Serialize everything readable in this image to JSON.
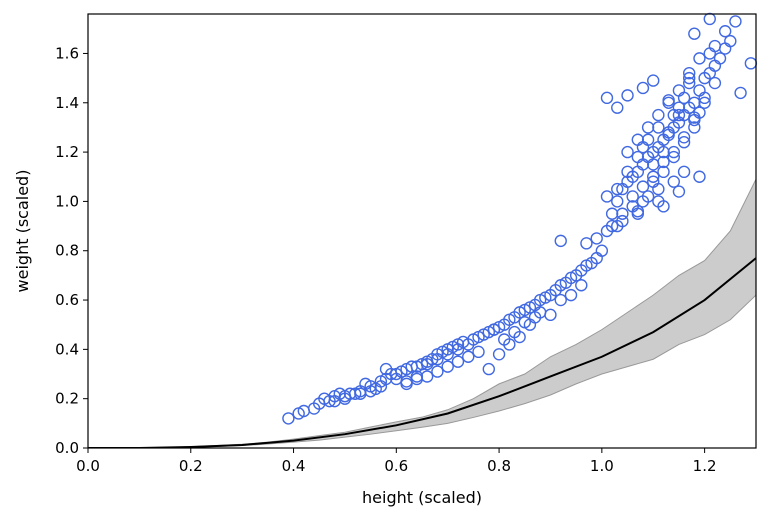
{
  "chart_data": {
    "type": "scatter",
    "title": "",
    "xlabel": "height (scaled)",
    "ylabel": "weight (scaled)",
    "xlim": [
      0,
      1.3
    ],
    "ylim": [
      0,
      1.76
    ],
    "grid": false,
    "legend": "none",
    "xticks": [
      {
        "value": 0.0,
        "label": "0.0"
      },
      {
        "value": 0.2,
        "label": "0.2"
      },
      {
        "value": 0.4,
        "label": "0.4"
      },
      {
        "value": 0.6,
        "label": "0.6"
      },
      {
        "value": 0.8,
        "label": "0.8"
      },
      {
        "value": 1.0,
        "label": "1.0"
      },
      {
        "value": 1.2,
        "label": "1.2"
      }
    ],
    "yticks": [
      {
        "value": 0.0,
        "label": "0.0"
      },
      {
        "value": 0.2,
        "label": "0.2"
      },
      {
        "value": 0.4,
        "label": "0.4"
      },
      {
        "value": 0.6,
        "label": "0.6"
      },
      {
        "value": 0.8,
        "label": "0.8"
      },
      {
        "value": 1.0,
        "label": "1.0"
      },
      {
        "value": 1.2,
        "label": "1.2"
      },
      {
        "value": 1.4,
        "label": "1.4"
      },
      {
        "value": 1.6,
        "label": "1.6"
      }
    ],
    "colors": {
      "points": "#4169e1",
      "line": "#000000",
      "band": "#cccccc",
      "band_edge": "#999999"
    },
    "scatter": {
      "x": [
        0.39,
        0.41,
        0.42,
        0.44,
        0.45,
        0.46,
        0.47,
        0.48,
        0.49,
        0.5,
        0.51,
        0.52,
        0.53,
        0.54,
        0.55,
        0.56,
        0.57,
        0.58,
        0.59,
        0.6,
        0.61,
        0.62,
        0.63,
        0.64,
        0.65,
        0.66,
        0.67,
        0.68,
        0.69,
        0.7,
        0.71,
        0.72,
        0.73,
        0.74,
        0.75,
        0.76,
        0.77,
        0.78,
        0.79,
        0.8,
        0.81,
        0.82,
        0.83,
        0.84,
        0.85,
        0.86,
        0.87,
        0.88,
        0.89,
        0.9,
        0.91,
        0.92,
        0.93,
        0.94,
        0.95,
        0.96,
        0.97,
        0.98,
        0.99,
        1.0,
        1.01,
        1.02,
        1.03,
        1.04,
        1.05,
        1.06,
        1.07,
        1.08,
        1.09,
        1.1,
        1.11,
        1.12,
        1.13,
        1.14,
        1.15,
        1.16,
        1.17,
        1.18,
        1.19,
        1.2,
        1.21,
        1.22,
        1.23,
        1.24,
        1.25,
        1.27,
        1.29,
        1.01,
        1.03,
        1.05,
        1.07,
        1.08,
        1.09,
        1.1,
        1.11,
        1.12,
        1.13,
        1.14,
        1.15,
        1.16,
        1.17,
        1.18,
        1.19,
        1.2,
        1.04,
        1.06,
        1.08,
        1.1,
        1.12,
        1.14,
        1.16,
        1.18,
        1.02,
        1.04,
        1.06,
        1.08,
        1.1,
        1.12,
        1.14,
        1.16,
        1.18,
        1.2,
        1.22,
        1.05,
        1.07,
        1.09,
        1.11,
        1.13,
        1.15,
        1.17,
        1.19,
        1.21,
        0.97,
        0.99,
        1.03,
        1.07,
        1.11,
        1.15,
        1.19,
        0.78,
        0.8,
        0.82,
        0.84,
        0.86,
        0.88,
        0.9,
        0.92,
        0.94,
        0.96,
        0.62,
        0.64,
        0.66,
        0.68,
        0.7,
        0.72,
        0.74,
        0.76,
        0.58,
        0.6,
        0.62,
        0.64,
        0.66,
        0.68,
        0.7,
        0.72,
        0.53,
        0.55,
        0.57,
        0.5,
        0.48,
        0.79,
        0.92,
        0.81,
        0.83,
        0.85,
        0.87,
        1.05,
        1.08,
        1.1,
        1.13,
        1.15,
        1.17,
        1.18,
        1.21,
        1.22,
        1.24,
        1.26,
        1.01,
        1.03,
        1.11,
        1.14,
        1.16,
        1.12,
        1.09,
        1.07
      ],
      "y": [
        0.12,
        0.14,
        0.15,
        0.16,
        0.18,
        0.2,
        0.19,
        0.21,
        0.22,
        0.21,
        0.22,
        0.22,
        0.23,
        0.26,
        0.25,
        0.24,
        0.27,
        0.28,
        0.3,
        0.3,
        0.31,
        0.32,
        0.33,
        0.33,
        0.34,
        0.35,
        0.36,
        0.38,
        0.39,
        0.4,
        0.41,
        0.42,
        0.43,
        0.42,
        0.44,
        0.45,
        0.46,
        0.47,
        0.48,
        0.49,
        0.5,
        0.52,
        0.53,
        0.55,
        0.56,
        0.57,
        0.58,
        0.6,
        0.61,
        0.62,
        0.64,
        0.66,
        0.67,
        0.69,
        0.7,
        0.72,
        0.74,
        0.75,
        0.77,
        0.8,
        0.88,
        0.95,
        1.0,
        1.05,
        1.08,
        1.1,
        1.12,
        1.15,
        1.18,
        1.2,
        1.22,
        1.25,
        1.27,
        1.3,
        1.32,
        1.35,
        1.38,
        1.4,
        1.45,
        1.5,
        1.52,
        1.55,
        1.58,
        1.62,
        1.65,
        1.44,
        1.56,
        1.02,
        1.05,
        1.12,
        1.18,
        1.22,
        1.25,
        1.15,
        1.3,
        1.2,
        1.28,
        1.35,
        1.38,
        1.42,
        1.48,
        1.33,
        1.36,
        1.4,
        0.92,
        0.98,
        1.0,
        1.08,
        1.12,
        1.18,
        1.24,
        1.3,
        0.9,
        0.95,
        1.02,
        1.06,
        1.1,
        1.16,
        1.2,
        1.26,
        1.34,
        1.42,
        1.48,
        1.2,
        1.25,
        1.3,
        1.35,
        1.4,
        1.45,
        1.52,
        1.58,
        1.6,
        0.83,
        0.85,
        0.9,
        0.95,
        1.0,
        1.04,
        1.1,
        0.32,
        0.38,
        0.42,
        0.45,
        0.5,
        0.55,
        0.54,
        0.6,
        0.62,
        0.66,
        0.26,
        0.28,
        0.29,
        0.31,
        0.33,
        0.35,
        0.37,
        0.39,
        0.32,
        0.28,
        0.27,
        0.29,
        0.34,
        0.36,
        0.38,
        0.4,
        0.22,
        0.23,
        0.25,
        0.2,
        0.19,
        0.48,
        0.84,
        0.44,
        0.47,
        0.51,
        0.53,
        1.43,
        1.46,
        1.49,
        1.41,
        1.35,
        1.5,
        1.68,
        1.74,
        1.63,
        1.69,
        1.73,
        1.42,
        1.38,
        1.05,
        1.08,
        1.12,
        0.98,
        1.02,
        0.96
      ],
      "marker": "hollow-circle"
    },
    "mean_line": {
      "x": [
        0.0,
        0.1,
        0.2,
        0.3,
        0.4,
        0.5,
        0.6,
        0.7,
        0.8,
        0.9,
        1.0,
        1.1,
        1.2,
        1.3
      ],
      "y": [
        0.0,
        0.0,
        0.004,
        0.012,
        0.03,
        0.056,
        0.092,
        0.14,
        0.21,
        0.29,
        0.37,
        0.47,
        0.6,
        0.77
      ]
    },
    "band": {
      "x": [
        0.0,
        0.1,
        0.2,
        0.3,
        0.35,
        0.4,
        0.45,
        0.5,
        0.55,
        0.6,
        0.65,
        0.7,
        0.75,
        0.8,
        0.85,
        0.9,
        0.95,
        1.0,
        1.05,
        1.1,
        1.15,
        1.2,
        1.25,
        1.3
      ],
      "lower": [
        0.0,
        0.0,
        0.003,
        0.01,
        0.016,
        0.024,
        0.032,
        0.044,
        0.056,
        0.07,
        0.084,
        0.1,
        0.124,
        0.15,
        0.18,
        0.215,
        0.26,
        0.3,
        0.33,
        0.36,
        0.42,
        0.46,
        0.52,
        0.62
      ],
      "upper": [
        0.0,
        0.0,
        0.005,
        0.015,
        0.024,
        0.036,
        0.05,
        0.064,
        0.085,
        0.106,
        0.125,
        0.155,
        0.2,
        0.26,
        0.3,
        0.37,
        0.42,
        0.48,
        0.55,
        0.62,
        0.7,
        0.76,
        0.88,
        1.09
      ]
    }
  }
}
